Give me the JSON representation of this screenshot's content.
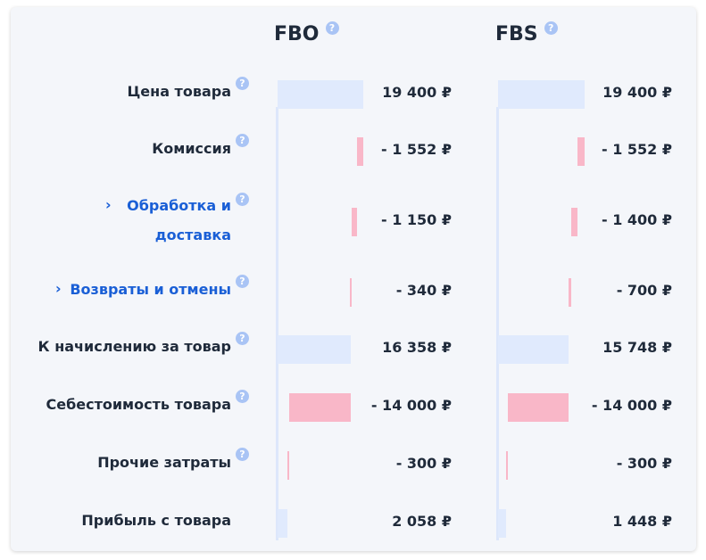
{
  "columns": [
    {
      "title": "FBO"
    },
    {
      "title": "FBS"
    }
  ],
  "rows": [
    {
      "label": "Цена товара",
      "fbo": "19 400 ₽",
      "fbs": "19 400 ₽",
      "fbo_amount": 19400,
      "fbs_amount": 19400
    },
    {
      "label": "Комиссия",
      "fbo": "- 1 552 ₽",
      "fbs": "- 1 552 ₽",
      "fbo_amount": -1552,
      "fbs_amount": -1552
    },
    {
      "label_line1": "Обработка и",
      "label_line2": "доставка",
      "expandable": true,
      "fbo": "- 1 150 ₽",
      "fbs": "- 1 400 ₽",
      "fbo_amount": -1150,
      "fbs_amount": -1400
    },
    {
      "label": "Возвраты и отмены",
      "expandable": true,
      "fbo": "- 340 ₽",
      "fbs": "- 700 ₽",
      "fbo_amount": -340,
      "fbs_amount": -700
    },
    {
      "label": "К начислению за товар",
      "fbo": "16 358 ₽",
      "fbs": "15 748 ₽",
      "fbo_amount": 16358,
      "fbs_amount": 15748
    },
    {
      "label": "Себестоимость товара",
      "fbo": "- 14 000 ₽",
      "fbs": "- 14 000 ₽",
      "fbo_amount": -14000,
      "fbs_amount": -14000
    },
    {
      "label": "Прочие затраты",
      "fbo": "- 300 ₽",
      "fbs": "- 300 ₽",
      "fbo_amount": -300,
      "fbs_amount": -300
    },
    {
      "label": "Прибыль с товара",
      "fbo": "2 058 ₽",
      "fbs": "1 448 ₽",
      "fbo_amount": 2058,
      "fbs_amount": 1448
    }
  ],
  "help_glyph": "?",
  "chevron_glyph": "›",
  "colors": {
    "positive_bar": "#e0eafd",
    "negative_bar": "#f9b7c8",
    "link": "#1a5fd6",
    "help_icon": "#a9c4f5"
  }
}
